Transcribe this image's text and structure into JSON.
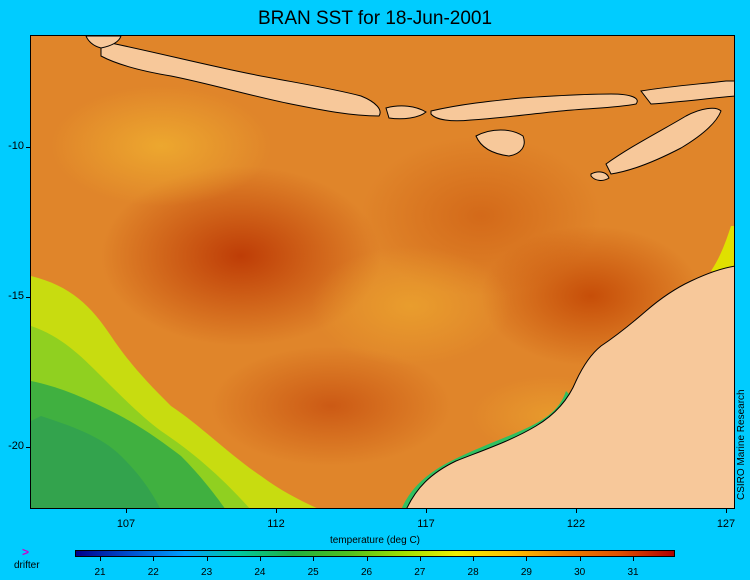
{
  "title": "BRAN SST for 18-Jun-2001",
  "credit": "CSIRO Marine Research",
  "legend": {
    "label": "temperature (deg C)",
    "ticks": [
      "21",
      "22",
      "23",
      "24",
      "25",
      "26",
      "27",
      "28",
      "29",
      "30",
      "31"
    ],
    "colors": [
      "#00008b",
      "#0050d0",
      "#00a0ff",
      "#00c8a0",
      "#22b040",
      "#50c020",
      "#a0e000",
      "#f0f000",
      "#ffc000",
      "#f08000",
      "#e05000",
      "#b00000"
    ]
  },
  "map": {
    "y_ticks": [
      "-10",
      "-15",
      "-20"
    ],
    "x_ticks": [
      "107",
      "112",
      "117",
      "122",
      "127"
    ],
    "land_color": "#f7c89a",
    "ocean_color": "#e0852a"
  },
  "drifter": {
    "icon": "arrowhead-icon",
    "symbol": ">",
    "label": "drifter"
  }
}
